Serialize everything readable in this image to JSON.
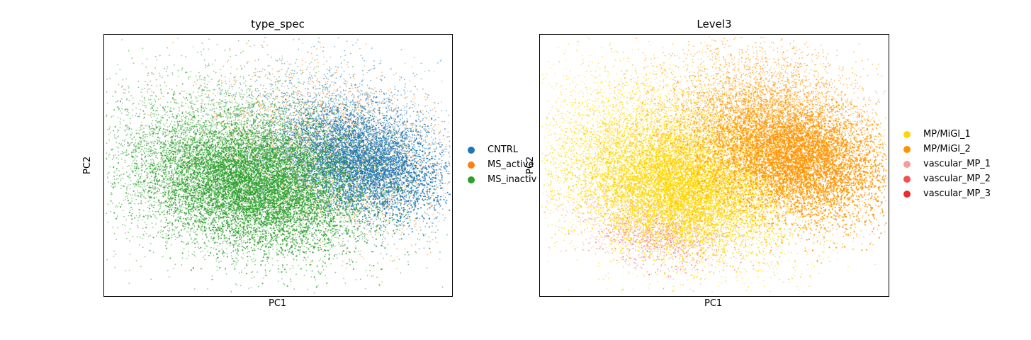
{
  "chart_data": [
    {
      "type": "scatter",
      "title": "type_spec",
      "xlabel": "PC1",
      "ylabel": "PC2",
      "grid": false,
      "legend_position": "right",
      "series": [
        {
          "name": "CNTRL",
          "color": "#1f77b4"
        },
        {
          "name": "MS_active",
          "color": "#ff7f0e"
        },
        {
          "name": "MS_inactive",
          "color": "#2ca02c"
        }
      ],
      "legend_visible_labels": [
        "CNTRL",
        "MS_active",
        "MS_inactiv"
      ]
    },
    {
      "type": "scatter",
      "title": "Level3",
      "xlabel": "PC1",
      "ylabel": "PC2",
      "grid": false,
      "legend_position": "right",
      "series": [
        {
          "name": "MP/MiGl_1",
          "color": "#ffd700"
        },
        {
          "name": "MP/MiGl_2",
          "color": "#ff9400"
        },
        {
          "name": "vascular_MP_1",
          "color": "#f79b9b"
        },
        {
          "name": "vascular_MP_2",
          "color": "#f25151"
        },
        {
          "name": "vascular_MP_3",
          "color": "#ef2b2b"
        }
      ],
      "legend_visible_labels": [
        "MP/MiGl_1",
        "MP/MiGl_2",
        "vascular_MP_1",
        "vascular_MP_2",
        "vascular_MP_3"
      ]
    }
  ]
}
